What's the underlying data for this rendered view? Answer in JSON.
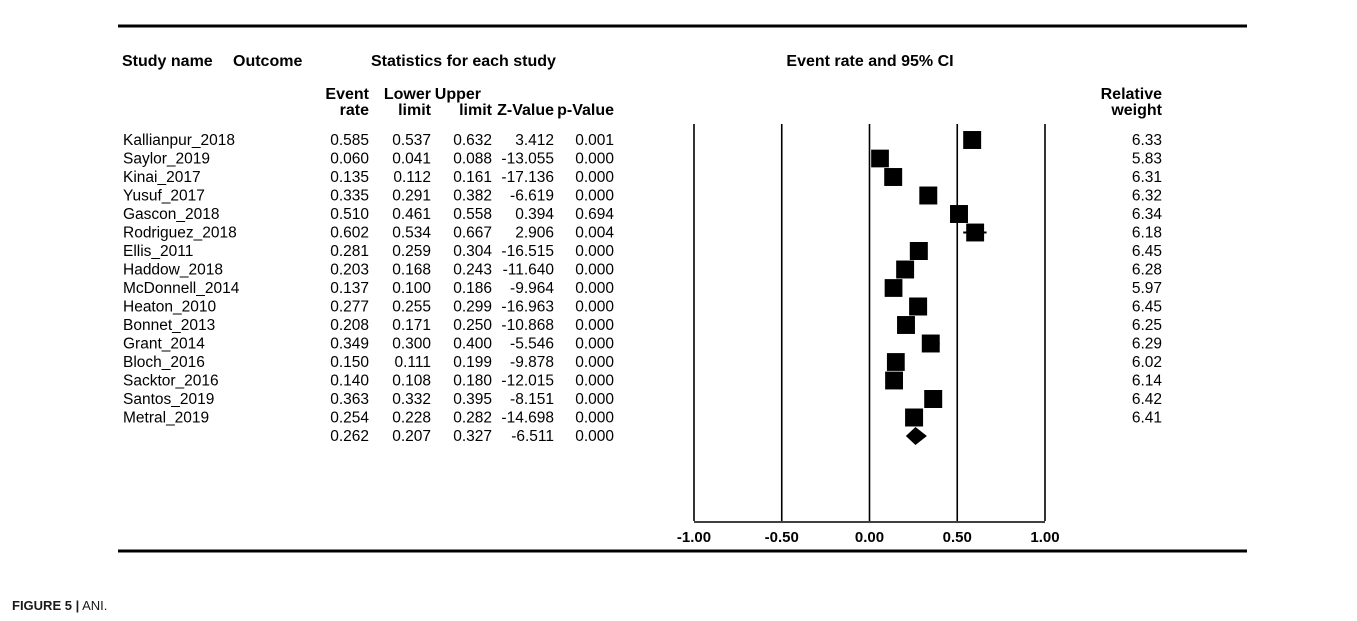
{
  "caption": {
    "label": "FIGURE 5 |",
    "text": "ANI."
  },
  "table": {
    "group_headers": {
      "study_name": "Study name",
      "outcome": "Outcome",
      "statistics": "Statistics for each study",
      "event_rate_ci": "Event rate and 95% CI"
    },
    "column_headers": {
      "event_rate": [
        "Event",
        "rate"
      ],
      "lower_limit": [
        "Lower",
        "limit"
      ],
      "upper_limit": [
        "Upper",
        "limit"
      ],
      "z_value": "Z-Value",
      "p_value": "p-Value",
      "relative_weight": [
        "Relative",
        "weight"
      ]
    },
    "rows": [
      {
        "study": "Kallianpur_2018",
        "rate": "0.585",
        "lower": "0.537",
        "upper": "0.632",
        "z": "3.412",
        "p": "0.001",
        "weight": "6.33"
      },
      {
        "study": "Saylor_2019",
        "rate": "0.060",
        "lower": "0.041",
        "upper": "0.088",
        "z": "-13.055",
        "p": "0.000",
        "weight": "5.83"
      },
      {
        "study": "Kinai_2017",
        "rate": "0.135",
        "lower": "0.112",
        "upper": "0.161",
        "z": "-17.136",
        "p": "0.000",
        "weight": "6.31"
      },
      {
        "study": "Yusuf_2017",
        "rate": "0.335",
        "lower": "0.291",
        "upper": "0.382",
        "z": "-6.619",
        "p": "0.000",
        "weight": "6.32"
      },
      {
        "study": "Gascon_2018",
        "rate": "0.510",
        "lower": "0.461",
        "upper": "0.558",
        "z": "0.394",
        "p": "0.694",
        "weight": "6.34"
      },
      {
        "study": "Rodriguez_2018",
        "rate": "0.602",
        "lower": "0.534",
        "upper": "0.667",
        "z": "2.906",
        "p": "0.004",
        "weight": "6.18"
      },
      {
        "study": "Ellis_2011",
        "rate": "0.281",
        "lower": "0.259",
        "upper": "0.304",
        "z": "-16.515",
        "p": "0.000",
        "weight": "6.45"
      },
      {
        "study": "Haddow_2018",
        "rate": "0.203",
        "lower": "0.168",
        "upper": "0.243",
        "z": "-11.640",
        "p": "0.000",
        "weight": "6.28"
      },
      {
        "study": "McDonnell_2014",
        "rate": "0.137",
        "lower": "0.100",
        "upper": "0.186",
        "z": "-9.964",
        "p": "0.000",
        "weight": "5.97"
      },
      {
        "study": "Heaton_2010",
        "rate": "0.277",
        "lower": "0.255",
        "upper": "0.299",
        "z": "-16.963",
        "p": "0.000",
        "weight": "6.45"
      },
      {
        "study": "Bonnet_2013",
        "rate": "0.208",
        "lower": "0.171",
        "upper": "0.250",
        "z": "-10.868",
        "p": "0.000",
        "weight": "6.25"
      },
      {
        "study": "Grant_2014",
        "rate": "0.349",
        "lower": "0.300",
        "upper": "0.400",
        "z": "-5.546",
        "p": "0.000",
        "weight": "6.29"
      },
      {
        "study": "Bloch_2016",
        "rate": "0.150",
        "lower": "0.111",
        "upper": "0.199",
        "z": "-9.878",
        "p": "0.000",
        "weight": "6.02"
      },
      {
        "study": "Sacktor_2016",
        "rate": "0.140",
        "lower": "0.108",
        "upper": "0.180",
        "z": "-12.015",
        "p": "0.000",
        "weight": "6.14"
      },
      {
        "study": "Santos_2019",
        "rate": "0.363",
        "lower": "0.332",
        "upper": "0.395",
        "z": "-8.151",
        "p": "0.000",
        "weight": "6.42"
      },
      {
        "study": "Metral_2019",
        "rate": "0.254",
        "lower": "0.228",
        "upper": "0.282",
        "z": "-14.698",
        "p": "0.000",
        "weight": "6.41"
      }
    ],
    "summary": {
      "rate": "0.262",
      "lower": "0.207",
      "upper": "0.327",
      "z": "-6.511",
      "p": "0.000"
    }
  },
  "chart_data": {
    "type": "forest",
    "xlim": [
      -1.0,
      1.0
    ],
    "x_ticks": [
      "-1.00",
      "-0.50",
      "0.00",
      "0.50",
      "1.00"
    ],
    "x_tick_values": [
      -1.0,
      -0.5,
      0.0,
      0.5,
      1.0
    ],
    "studies": [
      {
        "name": "Kallianpur_2018",
        "estimate": 0.585,
        "lower": 0.537,
        "upper": 0.632,
        "weight": 6.33
      },
      {
        "name": "Saylor_2019",
        "estimate": 0.06,
        "lower": 0.041,
        "upper": 0.088,
        "weight": 5.83
      },
      {
        "name": "Kinai_2017",
        "estimate": 0.135,
        "lower": 0.112,
        "upper": 0.161,
        "weight": 6.31
      },
      {
        "name": "Yusuf_2017",
        "estimate": 0.335,
        "lower": 0.291,
        "upper": 0.382,
        "weight": 6.32
      },
      {
        "name": "Gascon_2018",
        "estimate": 0.51,
        "lower": 0.461,
        "upper": 0.558,
        "weight": 6.34
      },
      {
        "name": "Rodriguez_2018",
        "estimate": 0.602,
        "lower": 0.534,
        "upper": 0.667,
        "weight": 6.18
      },
      {
        "name": "Ellis_2011",
        "estimate": 0.281,
        "lower": 0.259,
        "upper": 0.304,
        "weight": 6.45
      },
      {
        "name": "Haddow_2018",
        "estimate": 0.203,
        "lower": 0.168,
        "upper": 0.243,
        "weight": 6.28
      },
      {
        "name": "McDonnell_2014",
        "estimate": 0.137,
        "lower": 0.1,
        "upper": 0.186,
        "weight": 5.97
      },
      {
        "name": "Heaton_2010",
        "estimate": 0.277,
        "lower": 0.255,
        "upper": 0.299,
        "weight": 6.45
      },
      {
        "name": "Bonnet_2013",
        "estimate": 0.208,
        "lower": 0.171,
        "upper": 0.25,
        "weight": 6.25
      },
      {
        "name": "Grant_2014",
        "estimate": 0.349,
        "lower": 0.3,
        "upper": 0.4,
        "weight": 6.29
      },
      {
        "name": "Bloch_2016",
        "estimate": 0.15,
        "lower": 0.111,
        "upper": 0.199,
        "weight": 6.02
      },
      {
        "name": "Sacktor_2016",
        "estimate": 0.14,
        "lower": 0.108,
        "upper": 0.18,
        "weight": 6.14
      },
      {
        "name": "Santos_2019",
        "estimate": 0.363,
        "lower": 0.332,
        "upper": 0.395,
        "weight": 6.42
      },
      {
        "name": "Metral_2019",
        "estimate": 0.254,
        "lower": 0.228,
        "upper": 0.282,
        "weight": 6.41
      }
    ],
    "summary": {
      "estimate": 0.262,
      "lower": 0.207,
      "upper": 0.327
    },
    "marker_color": "#000000"
  }
}
